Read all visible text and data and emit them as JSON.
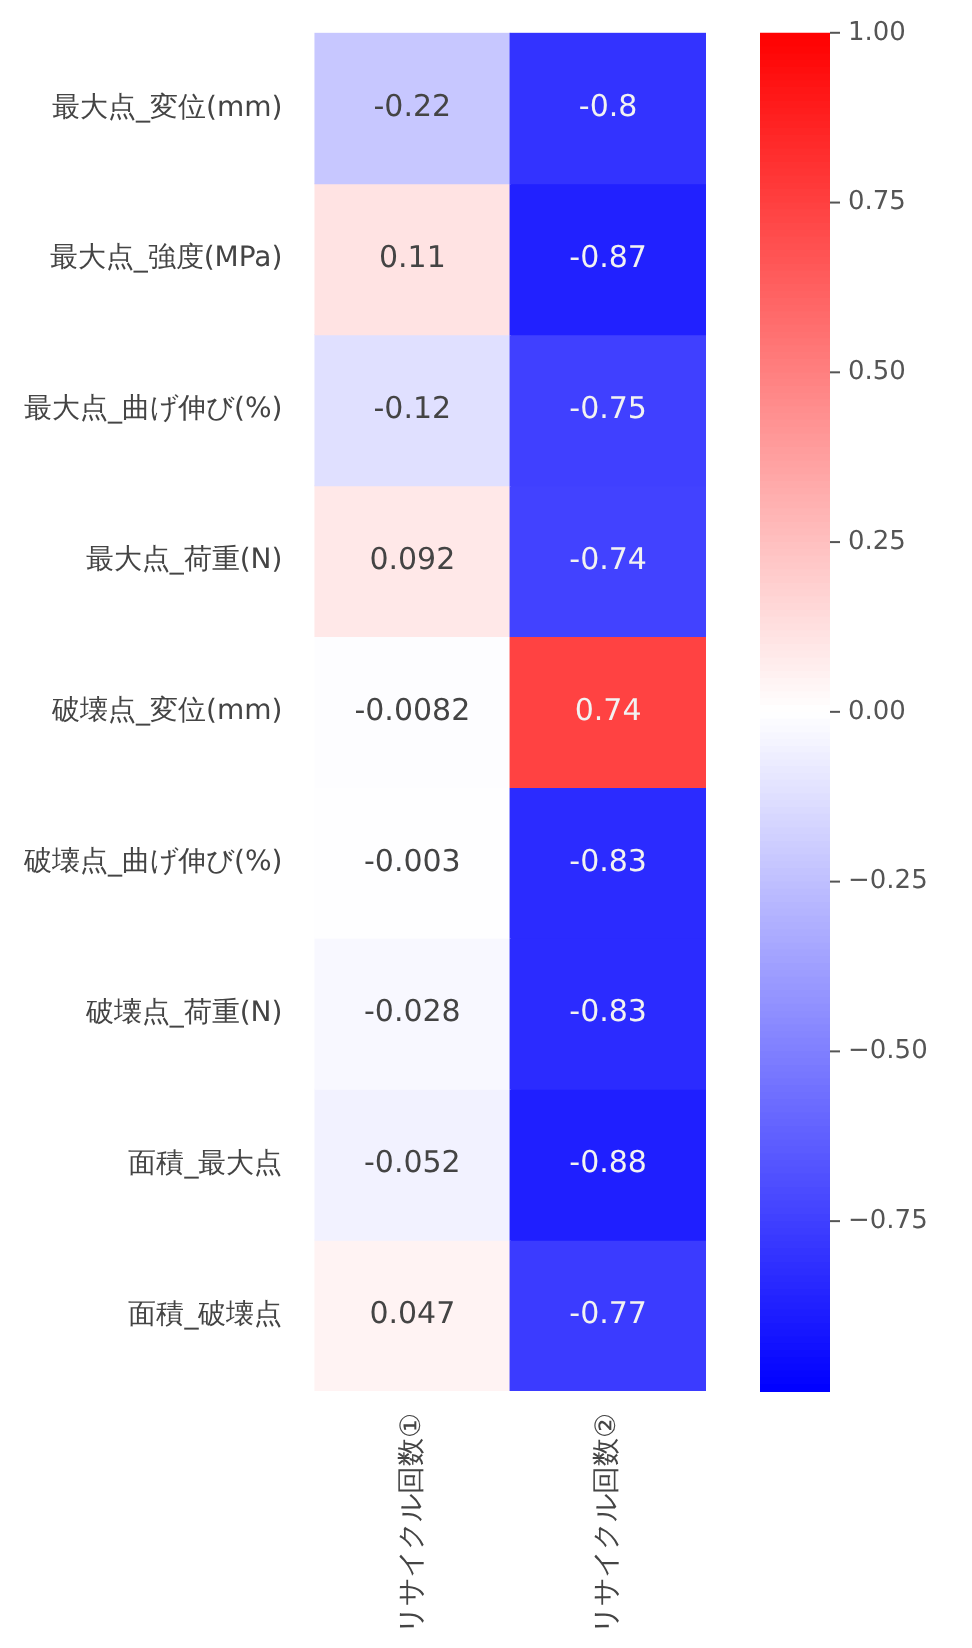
{
  "chart_data": {
    "type": "heatmap",
    "categories": [
      "リサイクル回数①",
      "リサイクル回数②"
    ],
    "y_categories": [
      "最大点_変位(mm)",
      "最大点_強度(MPa)",
      "最大点_曲げ伸び(%)",
      "最大点_荷重(N)",
      "破壊点_変位(mm)",
      "破壊点_曲げ伸び(%)",
      "破壊点_荷重(N)",
      "面積_最大点",
      "面積_破壊点"
    ],
    "cells": [
      [
        -0.22,
        -0.8
      ],
      [
        0.11,
        -0.87
      ],
      [
        -0.12,
        -0.75
      ],
      [
        0.092,
        -0.74
      ],
      [
        -0.0082,
        0.74
      ],
      [
        -0.003,
        -0.83
      ],
      [
        -0.028,
        -0.83
      ],
      [
        -0.052,
        -0.88
      ],
      [
        0.047,
        -0.77
      ]
    ],
    "clim": [
      -1,
      1
    ],
    "cticks": [
      {
        "value": 1,
        "label": "1.00"
      },
      0.75,
      {
        "value": 0.5,
        "label": "0.50"
      },
      0.25,
      {
        "value": 0,
        "label": "0.00"
      },
      {
        "value": -0.25,
        "label": "−0.25"
      },
      {
        "value": -0.5,
        "label": "−0.50"
      },
      {
        "value": -0.75,
        "label": "−0.75"
      }
    ],
    "data_labels": true
  }
}
